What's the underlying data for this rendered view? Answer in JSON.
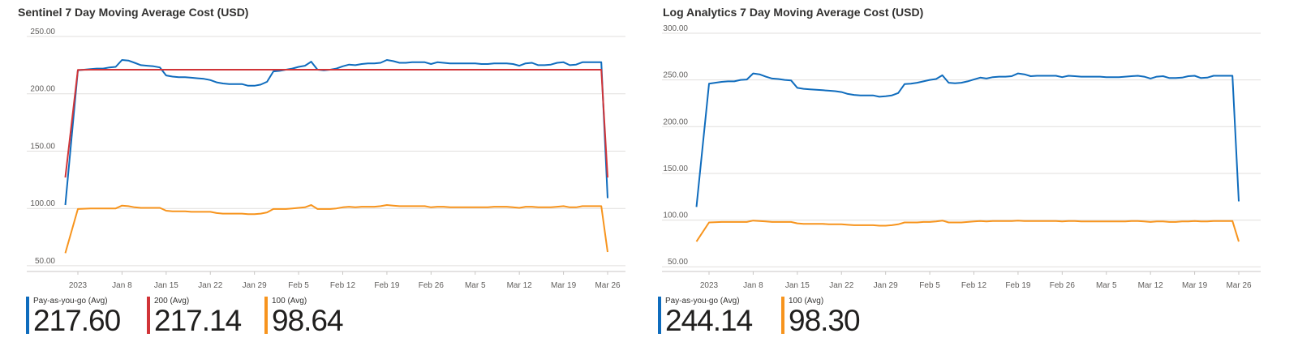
{
  "chart_data": [
    {
      "type": "line",
      "title": "Sentinel 7 Day Moving Average Cost (USD)",
      "ylim": [
        45,
        250
      ],
      "yticks": [
        "250.00",
        "200.00",
        "150.00",
        "100.00",
        "50.00"
      ],
      "ytick_values": [
        250,
        200,
        150,
        100,
        50
      ],
      "xtick_labels": [
        "2023",
        "Jan 8",
        "Jan 15",
        "Jan 22",
        "Jan 29",
        "Feb 5",
        "Feb 12",
        "Feb 19",
        "Feb 26",
        "Mar 5",
        "Mar 12",
        "Mar 19",
        "Mar 26"
      ],
      "xtick_days": [
        1,
        8,
        15,
        22,
        29,
        36,
        43,
        50,
        57,
        64,
        71,
        78,
        85
      ],
      "x_days": [
        -1,
        1,
        3,
        4,
        5,
        6,
        7,
        8,
        9,
        10,
        11,
        12,
        13,
        14,
        15,
        16,
        17,
        18,
        19,
        20,
        21,
        22,
        23,
        24,
        25,
        26,
        27,
        28,
        29,
        30,
        31,
        32,
        33,
        34,
        35,
        36,
        37,
        38,
        39,
        40,
        41,
        42,
        43,
        44,
        45,
        46,
        47,
        48,
        49,
        50,
        51,
        52,
        53,
        54,
        55,
        56,
        57,
        58,
        59,
        60,
        61,
        62,
        63,
        64,
        65,
        66,
        67,
        68,
        69,
        70,
        71,
        72,
        73,
        74,
        75,
        76,
        77,
        78,
        79,
        80,
        81,
        82,
        83,
        84,
        85,
        87
      ],
      "series": [
        {
          "name": "Pay-as-you-go (Avg)",
          "color": "#0f6cbd",
          "values": [
            103.0,
            220.5,
            221.5,
            222.0,
            222.0,
            223.0,
            223.5,
            229.5,
            229.0,
            227.0,
            225.0,
            224.5,
            224.0,
            223.0,
            216.0,
            215.0,
            214.5,
            214.5,
            214.0,
            213.5,
            213.0,
            212.0,
            210.0,
            209.0,
            208.5,
            208.5,
            208.5,
            207.0,
            207.0,
            208.0,
            210.5,
            219.5,
            220.0,
            221.0,
            222.0,
            223.5,
            224.5,
            228.0,
            221.0,
            220.5,
            221.0,
            222.0,
            224.0,
            225.5,
            225.0,
            226.0,
            226.5,
            226.5,
            227.0,
            229.5,
            228.5,
            227.0,
            227.0,
            227.5,
            227.5,
            227.5,
            226.0,
            227.5,
            227.0,
            226.5,
            226.5,
            226.5,
            226.5,
            226.5,
            226.0,
            226.0,
            226.5,
            226.5,
            226.5,
            226.0,
            224.5,
            226.5,
            227.0,
            225.0,
            225.0,
            225.5,
            227.0,
            227.5,
            225.0,
            225.5,
            227.5,
            227.5,
            227.5,
            227.5,
            109.0
          ]
        },
        {
          "name": "200 (Avg)",
          "color": "#d13438",
          "values": [
            127.0,
            220.8,
            221.0,
            221.0,
            221.0,
            221.0,
            221.0,
            221.0,
            221.0,
            221.0,
            221.0,
            221.0,
            221.0,
            221.0,
            221.0,
            221.0,
            221.0,
            221.0,
            221.0,
            221.0,
            221.0,
            221.0,
            221.0,
            221.0,
            221.0,
            221.0,
            221.0,
            221.0,
            221.0,
            221.0,
            221.0,
            221.0,
            221.0,
            221.0,
            221.0,
            221.0,
            221.0,
            221.0,
            221.0,
            221.0,
            221.0,
            221.0,
            221.0,
            221.0,
            221.0,
            221.0,
            221.0,
            221.0,
            221.0,
            221.0,
            221.0,
            221.0,
            221.0,
            221.0,
            221.0,
            221.0,
            221.0,
            221.0,
            221.0,
            221.0,
            221.0,
            221.0,
            221.0,
            221.0,
            221.0,
            221.0,
            221.0,
            221.0,
            221.0,
            221.0,
            221.0,
            221.0,
            221.0,
            221.0,
            221.0,
            221.0,
            221.0,
            221.0,
            221.0,
            221.0,
            221.0,
            221.0,
            221.0,
            221.0,
            127.0
          ]
        },
        {
          "name": "100 (Avg)",
          "color": "#f7941d",
          "values": [
            61.0,
            99.5,
            100.0,
            100.0,
            100.0,
            100.0,
            100.0,
            102.5,
            102.0,
            101.0,
            100.5,
            100.5,
            100.5,
            100.5,
            98.0,
            97.5,
            97.5,
            97.5,
            97.0,
            97.0,
            97.0,
            97.0,
            96.0,
            95.5,
            95.5,
            95.5,
            95.5,
            95.0,
            95.0,
            95.5,
            96.5,
            99.5,
            99.5,
            99.5,
            100.0,
            100.5,
            101.0,
            103.0,
            99.5,
            99.5,
            99.5,
            100.0,
            101.0,
            101.5,
            101.0,
            101.5,
            101.5,
            101.5,
            102.0,
            103.0,
            102.5,
            102.0,
            102.0,
            102.0,
            102.0,
            102.0,
            101.0,
            101.5,
            101.5,
            101.0,
            101.0,
            101.0,
            101.0,
            101.0,
            101.0,
            101.0,
            101.5,
            101.5,
            101.5,
            101.0,
            100.5,
            101.5,
            101.5,
            101.0,
            101.0,
            101.0,
            101.5,
            102.0,
            101.0,
            101.0,
            102.0,
            102.0,
            102.0,
            102.0,
            62.0
          ]
        }
      ],
      "legend": [
        {
          "label": "Pay-as-you-go (Avg)",
          "value": "217.60",
          "color": "#0f6cbd"
        },
        {
          "label": "200 (Avg)",
          "value": "217.14",
          "color": "#d13438"
        },
        {
          "label": "100 (Avg)",
          "value": "98.64",
          "color": "#f7941d"
        }
      ]
    },
    {
      "type": "line",
      "title": "Log Analytics 7 Day Moving Average Cost (USD)",
      "ylim": [
        45,
        300
      ],
      "yticks": [
        "300.00",
        "250.00",
        "200.00",
        "150.00",
        "100.00",
        "50.00"
      ],
      "ytick_values": [
        300,
        250,
        200,
        150,
        100,
        50
      ],
      "xtick_labels": [
        "2023",
        "Jan 8",
        "Jan 15",
        "Jan 22",
        "Jan 29",
        "Feb 5",
        "Feb 12",
        "Feb 19",
        "Feb 26",
        "Mar 5",
        "Mar 12",
        "Mar 19",
        "Mar 26"
      ],
      "xtick_days": [
        1,
        8,
        15,
        22,
        29,
        36,
        43,
        50,
        57,
        64,
        71,
        78,
        85
      ],
      "x_days": [
        -1,
        1,
        3,
        4,
        5,
        6,
        7,
        8,
        9,
        10,
        11,
        12,
        13,
        14,
        15,
        16,
        17,
        18,
        19,
        20,
        21,
        22,
        23,
        24,
        25,
        26,
        27,
        28,
        29,
        30,
        31,
        32,
        33,
        34,
        35,
        36,
        37,
        38,
        39,
        40,
        41,
        42,
        43,
        44,
        45,
        46,
        47,
        48,
        49,
        50,
        51,
        52,
        53,
        54,
        55,
        56,
        57,
        58,
        59,
        60,
        61,
        62,
        63,
        64,
        65,
        66,
        67,
        68,
        69,
        70,
        71,
        72,
        73,
        74,
        75,
        76,
        77,
        78,
        79,
        80,
        81,
        82,
        83,
        84,
        85,
        87
      ],
      "series": [
        {
          "name": "Pay-as-you-go (Avg)",
          "color": "#0f6cbd",
          "values": [
            114.0,
            246.0,
            248.0,
            248.5,
            248.5,
            250.0,
            250.5,
            257.0,
            256.0,
            253.5,
            251.5,
            251.0,
            250.0,
            249.5,
            241.5,
            240.5,
            240.0,
            239.5,
            239.0,
            238.5,
            238.0,
            237.0,
            235.0,
            234.0,
            233.5,
            233.5,
            233.5,
            232.0,
            232.5,
            233.5,
            236.0,
            245.5,
            246.0,
            247.0,
            248.5,
            250.0,
            251.0,
            255.0,
            247.0,
            246.5,
            247.0,
            248.5,
            250.5,
            252.5,
            251.5,
            253.0,
            253.5,
            253.5,
            254.0,
            257.0,
            256.0,
            254.0,
            254.5,
            254.5,
            254.5,
            254.5,
            253.0,
            254.5,
            254.0,
            253.5,
            253.5,
            253.5,
            253.5,
            253.0,
            253.0,
            253.0,
            253.5,
            254.0,
            254.5,
            253.5,
            251.5,
            253.5,
            254.0,
            252.0,
            252.0,
            252.5,
            254.0,
            254.5,
            252.0,
            252.5,
            254.5,
            254.5,
            254.5,
            254.5,
            120.0
          ]
        },
        {
          "name": "100 (Avg)",
          "color": "#f7941d",
          "values": [
            77.0,
            97.5,
            98.0,
            98.0,
            98.0,
            98.0,
            98.0,
            99.5,
            99.0,
            98.5,
            98.0,
            98.0,
            98.0,
            98.0,
            96.5,
            96.0,
            96.0,
            96.0,
            96.0,
            95.5,
            95.5,
            95.5,
            95.0,
            94.5,
            94.5,
            94.5,
            94.5,
            94.0,
            94.0,
            94.5,
            95.5,
            97.5,
            97.5,
            97.5,
            98.0,
            98.0,
            98.5,
            99.5,
            97.5,
            97.5,
            97.5,
            98.0,
            98.5,
            99.0,
            98.5,
            99.0,
            99.0,
            99.0,
            99.0,
            99.5,
            99.0,
            99.0,
            99.0,
            99.0,
            99.0,
            99.0,
            98.5,
            99.0,
            99.0,
            98.5,
            98.5,
            98.5,
            98.5,
            98.5,
            98.5,
            98.5,
            98.5,
            99.0,
            99.0,
            98.5,
            98.0,
            98.5,
            98.5,
            98.0,
            98.0,
            98.5,
            98.5,
            99.0,
            98.5,
            98.5,
            99.0,
            99.0,
            99.0,
            99.0,
            77.0
          ]
        }
      ],
      "legend": [
        {
          "label": "Pay-as-you-go (Avg)",
          "value": "244.14",
          "color": "#0f6cbd"
        },
        {
          "label": "100 (Avg)",
          "value": "98.30",
          "color": "#f7941d"
        }
      ]
    }
  ]
}
